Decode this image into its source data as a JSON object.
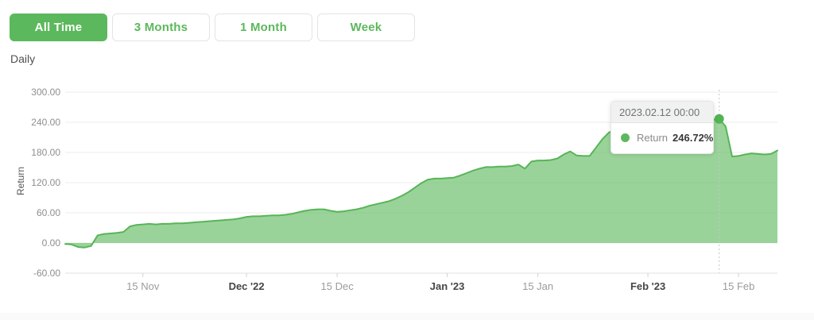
{
  "timeframe_buttons": [
    {
      "label": "All Time",
      "active": true
    },
    {
      "label": "3 Months",
      "active": false
    },
    {
      "label": "1 Month",
      "active": false
    },
    {
      "label": "Week",
      "active": false
    }
  ],
  "frequency_label": "Daily",
  "tooltip": {
    "date": "2023.02.12 00:00",
    "series": "Return",
    "value": "246.72%"
  },
  "colors": {
    "accent_green": "#5cb85c",
    "area_fill": "#8fca8f",
    "line_stroke": "#57b557",
    "grid": "#ececec"
  },
  "chart_data": {
    "type": "area",
    "title": "",
    "xlabel": "",
    "ylabel": "Return",
    "ylim": [
      -60,
      300
    ],
    "yticks": [
      -60,
      0,
      60,
      120,
      180,
      240,
      300
    ],
    "ytick_labels": [
      "-60.00",
      "0.00",
      "60.00",
      "120.00",
      "180.00",
      "240.00",
      "300.00"
    ],
    "grid": "horizontal",
    "legend": "none",
    "frequency": "daily",
    "start_date": "2022-11-03",
    "end_date": "2023-02-21",
    "x_ticks": [
      {
        "i": 12,
        "label": "15 Nov",
        "bold": false
      },
      {
        "i": 28,
        "label": "Dec '22",
        "bold": true
      },
      {
        "i": 42,
        "label": "15 Dec",
        "bold": false
      },
      {
        "i": 59,
        "label": "Jan '23",
        "bold": true
      },
      {
        "i": 73,
        "label": "15 Jan",
        "bold": false
      },
      {
        "i": 90,
        "label": "Feb '23",
        "bold": true
      },
      {
        "i": 104,
        "label": "15 Feb",
        "bold": false
      }
    ],
    "series_name": "Return",
    "values": [
      -2,
      -3,
      -8,
      -9,
      -6,
      15,
      18,
      19,
      20,
      22,
      33,
      36,
      37,
      38,
      37,
      38,
      38,
      39,
      39,
      40,
      41,
      42,
      43,
      44,
      45,
      46,
      47,
      49,
      52,
      53,
      53,
      54,
      55,
      55,
      56,
      58,
      61,
      64,
      66,
      67,
      67,
      64,
      62,
      63,
      65,
      67,
      70,
      74,
      77,
      80,
      83,
      88,
      94,
      101,
      110,
      119,
      126,
      128,
      128,
      129,
      130,
      134,
      139,
      144,
      148,
      151,
      151,
      152,
      152,
      153,
      156,
      148,
      162,
      164,
      164,
      165,
      168,
      176,
      182,
      174,
      173,
      173,
      190,
      207,
      220,
      224,
      227,
      229,
      231,
      232,
      234,
      235,
      236,
      237,
      238,
      239,
      240,
      241,
      242,
      244,
      245,
      246.72,
      232,
      172,
      173,
      176,
      178,
      177,
      176,
      177,
      184
    ],
    "active_point": {
      "index": 101,
      "date": "2023.02.12 00:00",
      "value": 246.72
    }
  }
}
